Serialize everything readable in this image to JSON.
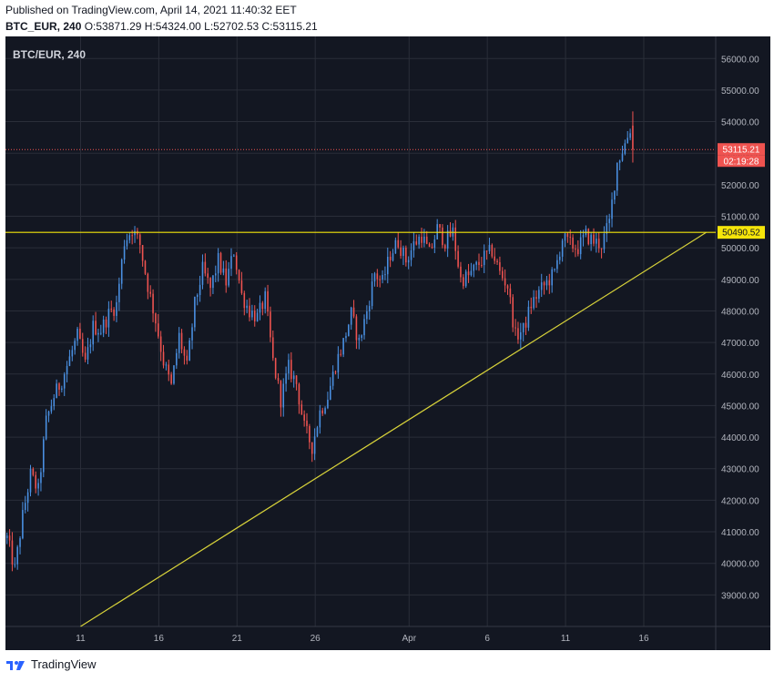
{
  "header": {
    "published": "Published on TradingView.com, April 14, 2021 11:40:32 EET",
    "symbol": "BTC_EUR, 240",
    "ohlc": "O:53871.29 H:54324.00 L:52702.53 C:53115.21"
  },
  "footer": {
    "brand": "TradingView",
    "logo_icon": "tradingview-logo-icon"
  },
  "colors": {
    "background": "#131722",
    "grid": "#2a2e39",
    "up": "#4a90e2",
    "down": "#ef5350",
    "horizontal_line": "#f5e50a",
    "trendline": "#d8d33a",
    "price_line": "#ef5350"
  },
  "chart_data": {
    "type": "candlestick",
    "title": "BTC/EUR, 240",
    "ylim": [
      38000,
      56700
    ],
    "y_ticks": [
      "39000.00",
      "40000.00",
      "41000.00",
      "42000.00",
      "43000.00",
      "44000.00",
      "45000.00",
      "46000.00",
      "47000.00",
      "48000.00",
      "49000.00",
      "50000.00",
      "51000.00",
      "52000.00",
      "53000.00",
      "54000.00",
      "55000.00",
      "56000.00"
    ],
    "x_ticks": [
      "11",
      "16",
      "21",
      "26",
      "Apr",
      "6",
      "11",
      "16"
    ],
    "x_tick_days": [
      11,
      16,
      21,
      26,
      32,
      37,
      42,
      47
    ],
    "x_range_days": [
      6.2,
      51.6
    ],
    "last_price_label": "53115.21",
    "countdown_label": "02:19:28",
    "horizontal_line_label": "50490.52",
    "horizontal_line_value": 50490.52,
    "last_price": 53115.21,
    "trendline": {
      "from": {
        "day": 11.0,
        "value": 38000
      },
      "to": {
        "day": 51.0,
        "value": 50490.52
      }
    },
    "anchor_closes": [
      [
        6.3,
        40800
      ],
      [
        6.8,
        39800
      ],
      [
        7.3,
        41500
      ],
      [
        7.8,
        42800
      ],
      [
        8.3,
        42300
      ],
      [
        8.8,
        44500
      ],
      [
        9.3,
        45300
      ],
      [
        9.8,
        45800
      ],
      [
        10.3,
        46500
      ],
      [
        10.8,
        47200
      ],
      [
        11.3,
        46300
      ],
      [
        11.8,
        47500
      ],
      [
        12.3,
        47400
      ],
      [
        12.8,
        47900
      ],
      [
        13.3,
        48200
      ],
      [
        13.8,
        50200
      ],
      [
        14.3,
        50600
      ],
      [
        14.8,
        50100
      ],
      [
        15.3,
        48800
      ],
      [
        15.8,
        47700
      ],
      [
        16.3,
        46400
      ],
      [
        16.8,
        45600
      ],
      [
        17.3,
        47200
      ],
      [
        17.8,
        46200
      ],
      [
        18.3,
        48200
      ],
      [
        18.8,
        49300
      ],
      [
        19.3,
        48700
      ],
      [
        19.8,
        49600
      ],
      [
        20.3,
        48900
      ],
      [
        20.8,
        49900
      ],
      [
        21.3,
        48500
      ],
      [
        21.8,
        48000
      ],
      [
        22.3,
        47800
      ],
      [
        22.8,
        48400
      ],
      [
        23.3,
        46400
      ],
      [
        23.8,
        45200
      ],
      [
        24.3,
        46200
      ],
      [
        24.8,
        45700
      ],
      [
        25.3,
        44300
      ],
      [
        25.8,
        43700
      ],
      [
        26.3,
        44800
      ],
      [
        26.8,
        45300
      ],
      [
        27.3,
        46300
      ],
      [
        27.8,
        47000
      ],
      [
        28.3,
        47900
      ],
      [
        28.8,
        47000
      ],
      [
        29.3,
        48000
      ],
      [
        29.8,
        49200
      ],
      [
        30.3,
        48900
      ],
      [
        30.8,
        49800
      ],
      [
        31.3,
        50200
      ],
      [
        31.8,
        49600
      ],
      [
        32.3,
        50100
      ],
      [
        32.8,
        50400
      ],
      [
        33.3,
        49800
      ],
      [
        33.8,
        50600
      ],
      [
        34.3,
        50200
      ],
      [
        34.8,
        50500
      ],
      [
        35.3,
        49000
      ],
      [
        35.8,
        49100
      ],
      [
        36.3,
        49400
      ],
      [
        36.8,
        49700
      ],
      [
        37.3,
        49900
      ],
      [
        37.8,
        49200
      ],
      [
        38.3,
        48800
      ],
      [
        38.8,
        47200
      ],
      [
        39.3,
        47400
      ],
      [
        39.8,
        48200
      ],
      [
        40.3,
        48600
      ],
      [
        40.8,
        48900
      ],
      [
        41.3,
        49200
      ],
      [
        41.8,
        50300
      ],
      [
        42.3,
        50100
      ],
      [
        42.8,
        50000
      ],
      [
        43.3,
        50400
      ],
      [
        43.8,
        50200
      ],
      [
        44.3,
        50100
      ],
      [
        44.8,
        50800
      ],
      [
        45.3,
        52700
      ],
      [
        45.8,
        53300
      ],
      [
        46.2,
        53871.29
      ],
      [
        46.45,
        53115.21
      ]
    ]
  }
}
